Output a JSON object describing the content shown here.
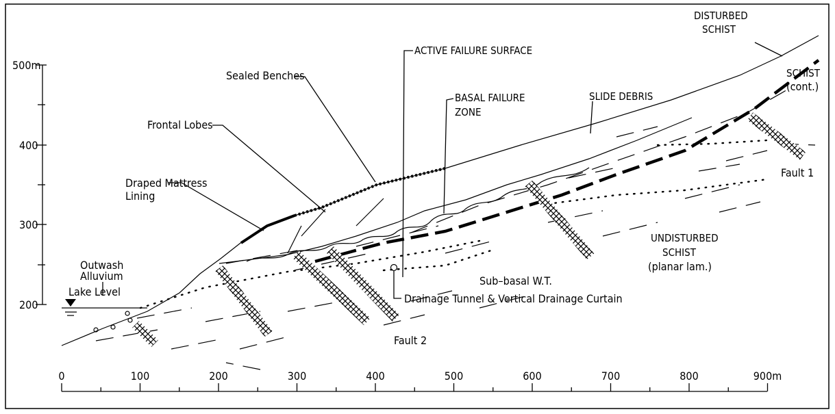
{
  "axis": {
    "y_labels": [
      "500m",
      "400",
      "300",
      "200"
    ],
    "x_labels": [
      "0",
      "100",
      "200",
      "300",
      "400",
      "500",
      "600",
      "700",
      "800",
      "900m"
    ]
  },
  "labels": {
    "lake_level": "Lake Level",
    "outwash": "Outwash",
    "alluvium": "Alluvium",
    "draped_1": "Draped Mattress",
    "draped_2": "Lining",
    "frontal_lobes": "Frontal Lobes",
    "sealed_benches": "Sealed Benches",
    "active_failure": "ACTIVE FAILURE SURFACE",
    "basal_1": "BASAL FAILURE",
    "basal_2": "ZONE",
    "slide_debris": "SLIDE DEBRIS",
    "disturbed_1": "DISTURBED",
    "disturbed_2": "SCHIST",
    "schist_1": "SCHIST",
    "schist_2": "(cont.)",
    "fault_1": "Fault 1",
    "fault_2": "Fault 2",
    "undisturbed_1": "UNDISTURBED",
    "undisturbed_2": "SCHIST",
    "undisturbed_3": "(planar lam.)",
    "sub_basal": "Sub–basal W.T.",
    "drainage": "Drainage Tunnel & Vertical Drainage Curtain"
  }
}
